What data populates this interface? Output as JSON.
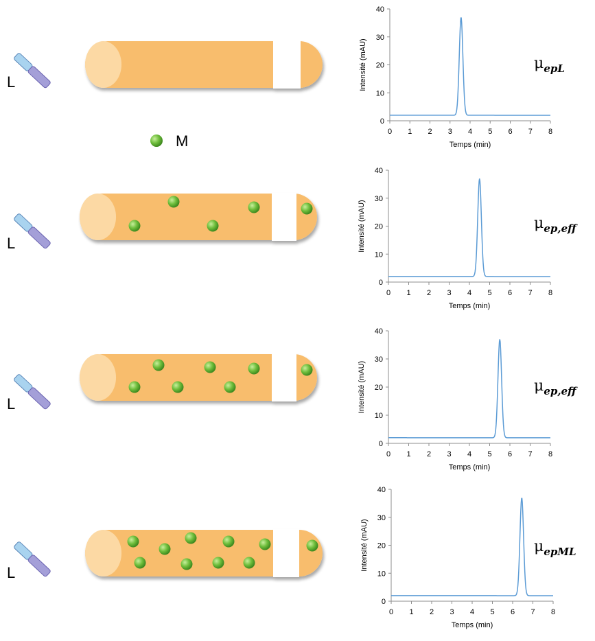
{
  "ligand_label": "L",
  "metal_label": "M",
  "colors": {
    "capillary": "#f8bd6d",
    "capillary_end": "#fcd9a4",
    "plug": "#ffffff",
    "bead": "#6fbe3c",
    "trace": "#5b9bd5",
    "ligand_top": "#a9d3ef",
    "ligand_bottom": "#a49fd8"
  },
  "rows": [
    {
      "label": "L",
      "mobility_symbol": "μ",
      "mobility_subscript": "epL",
      "beads": 0
    },
    {
      "label": "L",
      "mobility_symbol": "μ",
      "mobility_subscript": "ep,eff",
      "beads": 5
    },
    {
      "label": "L",
      "mobility_symbol": "μ",
      "mobility_subscript": "ep,eff",
      "beads": 7
    },
    {
      "label": "L",
      "mobility_symbol": "μ",
      "mobility_subscript": "epML",
      "beads": 10
    }
  ],
  "chart_data": [
    {
      "type": "line",
      "xlabel": "Temps (min)",
      "ylabel": "Intensité (mAU)",
      "xlim": [
        0,
        8
      ],
      "ylim": [
        0,
        40
      ],
      "xticks": [
        "0",
        "1",
        "2",
        "3",
        "4",
        "5",
        "6",
        "7",
        "8"
      ],
      "yticks": [
        "0",
        "10",
        "20",
        "30",
        "40"
      ],
      "baseline": 2,
      "peak_time": 3.55,
      "peak_height": 37,
      "peak_width": 0.09
    },
    {
      "type": "line",
      "xlabel": "Temps (min)",
      "ylabel": "Intensité (mAU)",
      "xlim": [
        0,
        8
      ],
      "ylim": [
        0,
        40
      ],
      "xticks": [
        "0",
        "1",
        "2",
        "3",
        "4",
        "5",
        "6",
        "7",
        "8"
      ],
      "yticks": [
        "0",
        "10",
        "20",
        "30",
        "40"
      ],
      "baseline": 2,
      "peak_time": 4.5,
      "peak_height": 37,
      "peak_width": 0.09
    },
    {
      "type": "line",
      "xlabel": "Temps (min)",
      "ylabel": "Intensité (mAU)",
      "xlim": [
        0,
        8
      ],
      "ylim": [
        0,
        40
      ],
      "xticks": [
        "0",
        "1",
        "2",
        "3",
        "4",
        "5",
        "6",
        "7",
        "8"
      ],
      "yticks": [
        "0",
        "10",
        "20",
        "30",
        "40"
      ],
      "baseline": 2,
      "peak_time": 5.5,
      "peak_height": 37,
      "peak_width": 0.09
    },
    {
      "type": "line",
      "xlabel": "Temps (min)",
      "ylabel": "Intensité (mAU)",
      "xlim": [
        0,
        8
      ],
      "ylim": [
        0,
        40
      ],
      "xticks": [
        "0",
        "1",
        "2",
        "3",
        "4",
        "5",
        "6",
        "7",
        "8"
      ],
      "yticks": [
        "0",
        "10",
        "20",
        "30",
        "40"
      ],
      "baseline": 2,
      "peak_time": 6.45,
      "peak_height": 37,
      "peak_width": 0.09
    }
  ]
}
